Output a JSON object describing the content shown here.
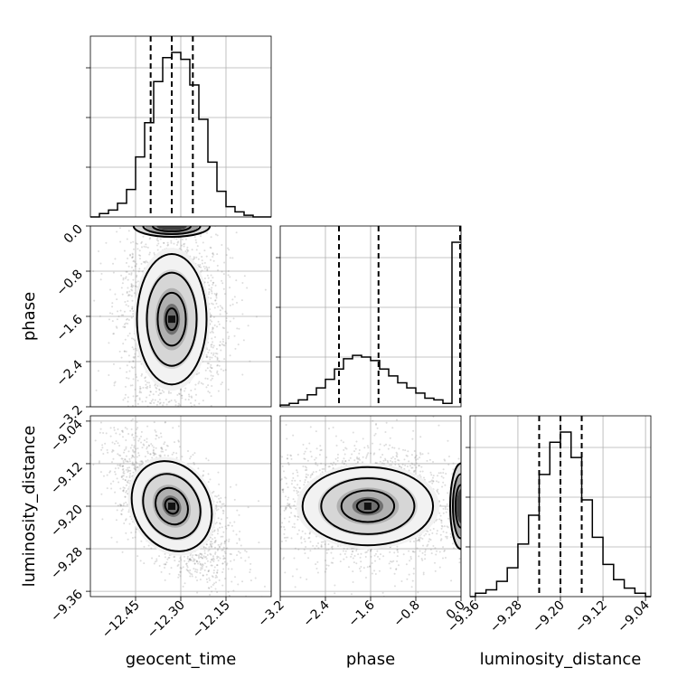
{
  "chart_data": {
    "type": "corner",
    "parameters": [
      "geocent_time",
      "phase",
      "luminosity_distance"
    ],
    "axis_labels": {
      "geocent_time": "geocent_time",
      "phase": "phase",
      "luminosity_distance": "luminosity_distance"
    },
    "ranges": {
      "geocent_time": [
        -12.6,
        -12.0
      ],
      "phase": [
        -3.2,
        0.0
      ],
      "luminosity_distance": [
        -9.37,
        -9.03
      ]
    },
    "ticks": {
      "geocent_time": [
        -12.45,
        -12.3,
        -12.15
      ],
      "phase": [
        -3.2,
        -2.4,
        -1.6,
        -0.8,
        0.0
      ],
      "luminosity_distance": [
        -9.36,
        -9.28,
        -9.2,
        -9.12,
        -9.04
      ]
    },
    "tick_labels": {
      "geocent_time": [
        "−12.45",
        "−12.30",
        "−12.15"
      ],
      "phase": [
        "−3.2",
        "−2.4",
        "−1.6",
        "−0.8",
        "0.0"
      ],
      "luminosity_distance": [
        "−9.36",
        "−9.28",
        "−9.20",
        "−9.12",
        "−9.04"
      ]
    },
    "marginals": {
      "geocent_time": {
        "bin_edges": [
          -12.6,
          -12.57,
          -12.54,
          -12.51,
          -12.48,
          -12.45,
          -12.42,
          -12.39,
          -12.36,
          -12.33,
          -12.3,
          -12.27,
          -12.24,
          -12.21,
          -12.18,
          -12.15,
          -12.12,
          -12.09,
          -12.06,
          -12.03,
          -12.0
        ],
        "counts": [
          0.0,
          0.02,
          0.04,
          0.08,
          0.16,
          0.35,
          0.55,
          0.79,
          0.93,
          0.96,
          0.92,
          0.77,
          0.57,
          0.32,
          0.15,
          0.06,
          0.03,
          0.01,
          0.0,
          0.0
        ],
        "quantiles": [
          -12.4,
          -12.33,
          -12.26
        ]
      },
      "phase": {
        "bin_edges": [
          -3.2,
          -3.04,
          -2.88,
          -2.72,
          -2.56,
          -2.4,
          -2.24,
          -2.08,
          -1.92,
          -1.76,
          -1.6,
          -1.44,
          -1.28,
          -1.12,
          -0.96,
          -0.8,
          -0.64,
          -0.48,
          -0.32,
          -0.16,
          0.0
        ],
        "counts": [
          0.01,
          0.02,
          0.04,
          0.07,
          0.11,
          0.16,
          0.22,
          0.28,
          0.3,
          0.29,
          0.27,
          0.22,
          0.18,
          0.14,
          0.11,
          0.08,
          0.05,
          0.04,
          0.02,
          0.96
        ],
        "quantiles": [
          -2.16,
          -1.46,
          0.0
        ]
      },
      "luminosity_distance": {
        "bin_edges": [
          -9.38,
          -9.36,
          -9.34,
          -9.32,
          -9.3,
          -9.28,
          -9.26,
          -9.24,
          -9.22,
          -9.2,
          -9.18,
          -9.16,
          -9.14,
          -9.12,
          -9.1,
          -9.08,
          -9.06,
          -9.04,
          -9.02
        ],
        "counts": [
          0.0,
          0.02,
          0.04,
          0.09,
          0.17,
          0.31,
          0.48,
          0.72,
          0.91,
          0.97,
          0.82,
          0.57,
          0.35,
          0.19,
          0.1,
          0.05,
          0.02,
          0.0
        ],
        "quantiles": [
          -9.24,
          -9.2,
          -9.16
        ]
      }
    },
    "joint_distributions": [
      {
        "x": "geocent_time",
        "y": "phase",
        "center": [
          -12.33,
          -1.65
        ],
        "spread": [
          0.055,
          0.55
        ],
        "rho": 0.0,
        "mode_near_edge": 0.0
      },
      {
        "x": "geocent_time",
        "y": "luminosity_distance",
        "center": [
          -12.33,
          -9.2
        ],
        "spread": [
          0.06,
          0.042
        ],
        "rho": 0.6
      },
      {
        "x": "phase",
        "y": "luminosity_distance",
        "center": [
          -1.65,
          -9.2
        ],
        "spread": [
          0.55,
          0.035
        ],
        "rho": 0.0,
        "mode_near_edge": 0.0
      }
    ],
    "grid": true,
    "quantile_style": "dashed"
  }
}
